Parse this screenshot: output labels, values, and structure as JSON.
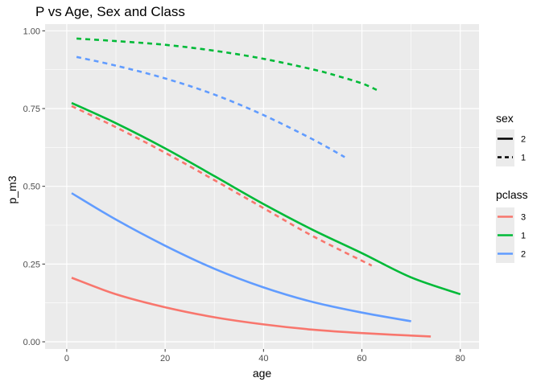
{
  "chart_data": {
    "type": "line",
    "title": "P vs Age, Sex and Class",
    "xlabel": "age",
    "ylabel": "p_m3",
    "xlim": [
      -4.4,
      83.8
    ],
    "ylim": [
      -0.0232,
      1.0215
    ],
    "x_ticks": [
      0,
      20,
      40,
      60,
      80
    ],
    "x_tick_labels": [
      "0",
      "20",
      "40",
      "60",
      "80"
    ],
    "y_ticks": [
      0,
      0.25,
      0.5,
      0.75,
      1.0
    ],
    "y_tick_labels": [
      "0.00",
      "0.25",
      "0.50",
      "0.75",
      "1.00"
    ],
    "grid": true,
    "legend_placement": "right",
    "legends": [
      {
        "title": "sex",
        "entries": [
          {
            "label": "2",
            "linetype": "solid"
          },
          {
            "label": "1",
            "linetype": "dashed"
          }
        ]
      },
      {
        "title": "pclass",
        "entries": [
          {
            "label": "3",
            "color": "#F8766D"
          },
          {
            "label": "1",
            "color": "#00BA38"
          },
          {
            "label": "2",
            "color": "#619CFF"
          }
        ]
      }
    ],
    "series": [
      {
        "pclass": "1",
        "sex": "1",
        "color": "#00BA38",
        "linetype": "dashed",
        "x": [
          2,
          10,
          20,
          30,
          40,
          50,
          55,
          60,
          63
        ],
        "y": [
          0.975,
          0.967,
          0.955,
          0.936,
          0.91,
          0.876,
          0.855,
          0.831,
          0.81
        ]
      },
      {
        "pclass": "2",
        "sex": "1",
        "color": "#619CFF",
        "linetype": "dashed",
        "x": [
          2,
          10,
          20,
          30,
          40,
          50,
          56.5
        ],
        "y": [
          0.916,
          0.888,
          0.847,
          0.795,
          0.729,
          0.651,
          0.594
        ]
      },
      {
        "pclass": "1",
        "sex": "2",
        "color": "#00BA38",
        "linetype": "solid",
        "x": [
          1,
          10,
          20,
          30,
          40,
          50,
          60,
          70,
          80
        ],
        "y": [
          0.768,
          0.703,
          0.622,
          0.533,
          0.443,
          0.36,
          0.285,
          0.207,
          0.153
        ]
      },
      {
        "pclass": "3",
        "sex": "1",
        "color": "#F8766D",
        "linetype": "dashed",
        "x": [
          1,
          10,
          20,
          30,
          40,
          50,
          62
        ],
        "y": [
          0.758,
          0.69,
          0.608,
          0.52,
          0.43,
          0.34,
          0.245
        ]
      },
      {
        "pclass": "2",
        "sex": "2",
        "color": "#619CFF",
        "linetype": "solid",
        "x": [
          1,
          10,
          20,
          30,
          40,
          50,
          60,
          70
        ],
        "y": [
          0.478,
          0.393,
          0.309,
          0.235,
          0.175,
          0.128,
          0.094,
          0.066
        ]
      },
      {
        "pclass": "3",
        "sex": "2",
        "color": "#F8766D",
        "linetype": "solid",
        "x": [
          1,
          10,
          20,
          30,
          40,
          50,
          60,
          74
        ],
        "y": [
          0.206,
          0.153,
          0.111,
          0.079,
          0.056,
          0.039,
          0.028,
          0.017
        ]
      }
    ]
  }
}
